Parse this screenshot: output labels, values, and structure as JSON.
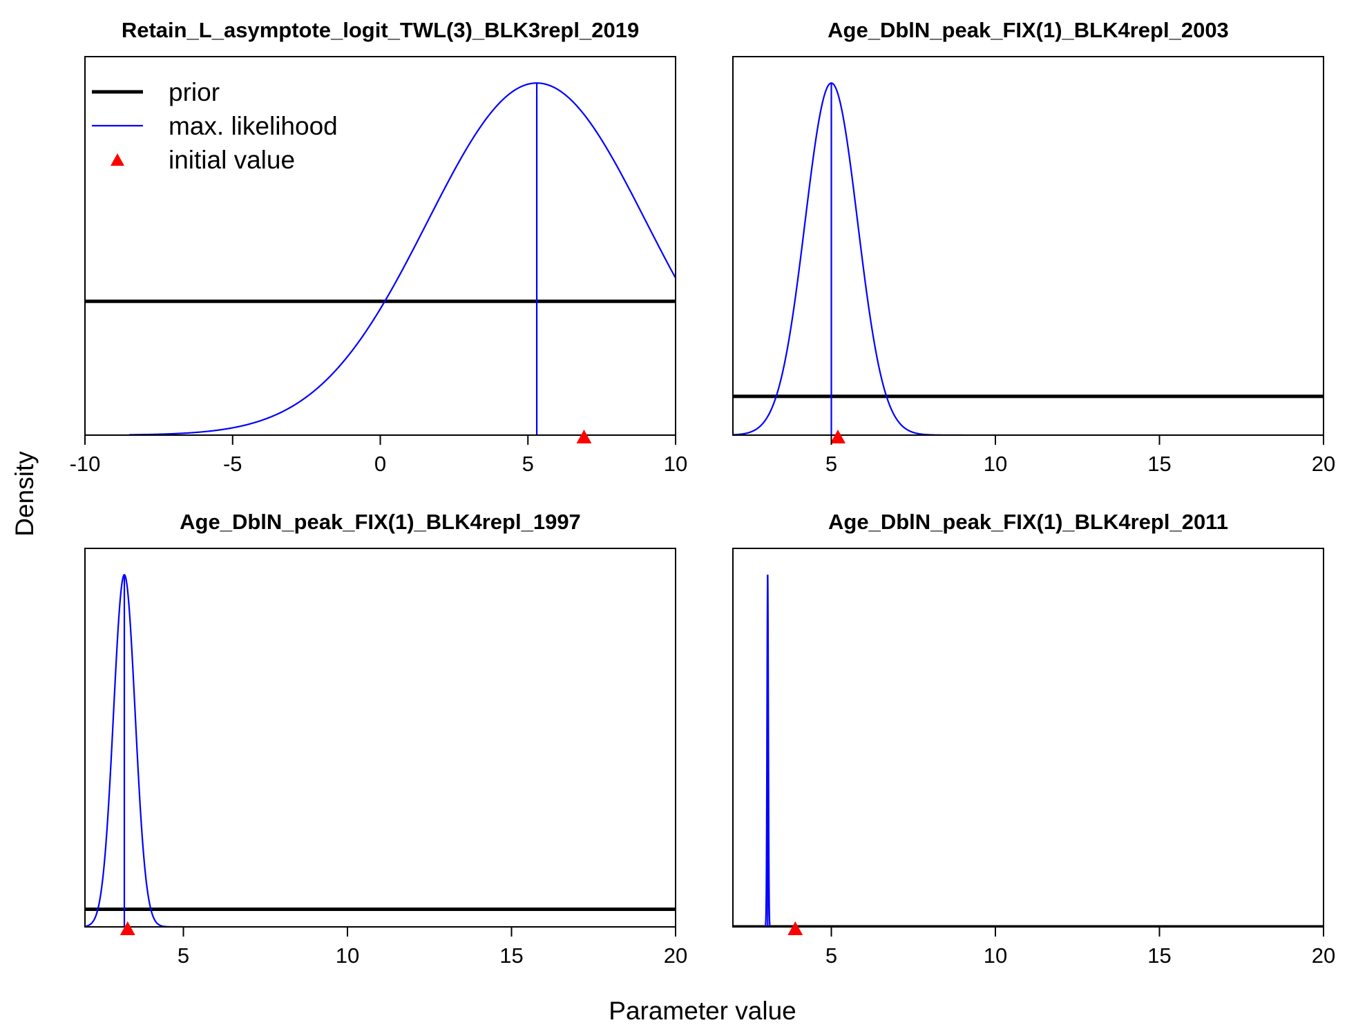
{
  "figure": {
    "ylabel": "Density",
    "xlabel": "Parameter value",
    "legend": {
      "placement": "top-left of first panel",
      "items": [
        {
          "label": "prior",
          "color": "#000000",
          "kind": "thick-line"
        },
        {
          "label": "max. likelihood",
          "color": "#0000ff",
          "kind": "thin-line"
        },
        {
          "label": "initial value",
          "color": "#ff0000",
          "kind": "triangle"
        }
      ]
    }
  },
  "chart_data": [
    {
      "type": "line",
      "title": "Retain_L_asymptote_logit_TWL(3)_BLK3repl_2019",
      "xlim": [
        -10,
        10
      ],
      "ylim": [
        0,
        1.075
      ],
      "xticks": [
        -10,
        -5,
        0,
        5,
        10
      ],
      "xtick_labels": [
        "-10",
        "-5",
        "0",
        "5",
        "10"
      ],
      "series": [
        {
          "name": "prior",
          "kind": "flat",
          "y": 0.38
        },
        {
          "name": "max. likelihood",
          "kind": "normal",
          "mean": 5.3,
          "sd": 3.7,
          "peak": 1.0,
          "x_range": [
            -8.5,
            10
          ]
        }
      ],
      "mle": 5.3,
      "initial_value": 6.9
    },
    {
      "type": "line",
      "title": "Age_DblN_peak_FIX(1)_BLK4repl_2003",
      "xlim": [
        2,
        20
      ],
      "ylim": [
        0,
        1.075
      ],
      "xticks": [
        5,
        10,
        15,
        20
      ],
      "xtick_labels": [
        "5",
        "10",
        "15",
        "20"
      ],
      "series": [
        {
          "name": "prior",
          "kind": "flat",
          "y": 0.11
        },
        {
          "name": "max. likelihood",
          "kind": "normal",
          "mean": 5.0,
          "sd": 0.8,
          "peak": 1.0,
          "x_range": [
            2,
            9
          ]
        }
      ],
      "mle": 5.0,
      "initial_value": 5.2
    },
    {
      "type": "line",
      "title": "Age_DblN_peak_FIX(1)_BLK4repl_1997",
      "xlim": [
        2,
        20
      ],
      "ylim": [
        0,
        1.075
      ],
      "xticks": [
        5,
        10,
        15,
        20
      ],
      "xtick_labels": [
        "5",
        "10",
        "15",
        "20"
      ],
      "series": [
        {
          "name": "prior",
          "kind": "flat",
          "y": 0.05
        },
        {
          "name": "max. likelihood",
          "kind": "normal",
          "mean": 3.2,
          "sd": 0.33,
          "peak": 1.0,
          "x_range": [
            2,
            5
          ]
        }
      ],
      "mle": 3.2,
      "initial_value": 3.3
    },
    {
      "type": "line",
      "title": "Age_DblN_peak_FIX(1)_BLK4repl_2011",
      "xlim": [
        2,
        20
      ],
      "ylim": [
        0,
        1.075
      ],
      "xticks": [
        5,
        10,
        15,
        20
      ],
      "xtick_labels": [
        "5",
        "10",
        "15",
        "20"
      ],
      "series": [
        {
          "name": "prior",
          "kind": "flat",
          "y": 0.0
        },
        {
          "name": "max. likelihood",
          "kind": "normal",
          "mean": 3.06,
          "sd": 0.02,
          "peak": 1.0,
          "x_range": [
            2.9,
            3.25
          ]
        }
      ],
      "mle": 3.06,
      "initial_value": 3.9
    }
  ]
}
